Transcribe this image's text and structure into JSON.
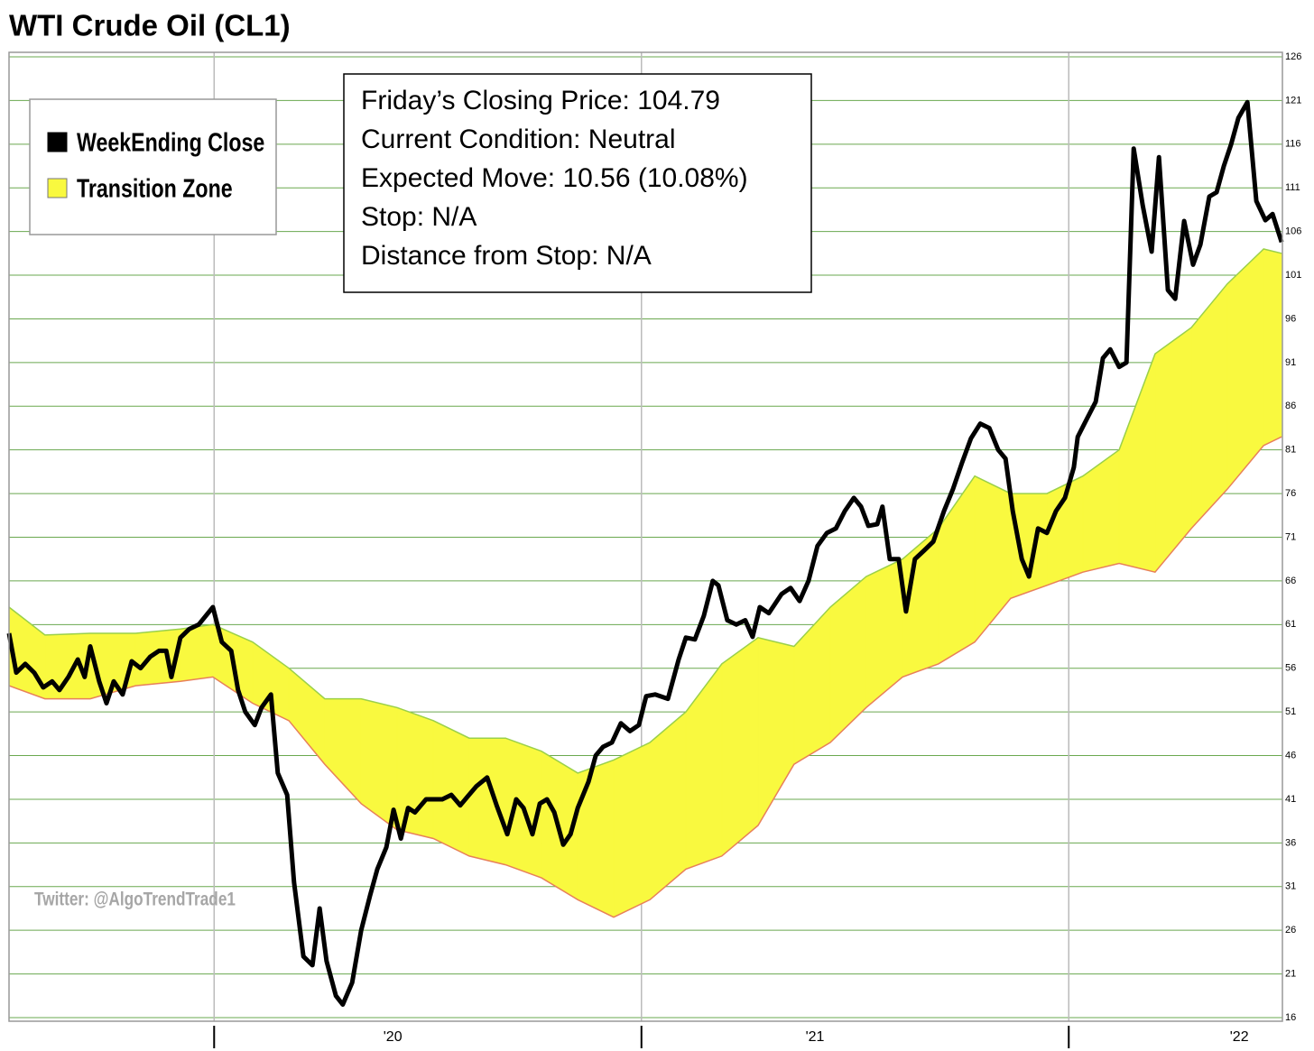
{
  "chart_data": {
    "type": "line",
    "title": "WTI Crude Oil (CL1)",
    "info": [
      "Friday’s Closing Price: 104.79",
      "Current Condition: Neutral",
      "Expected Move: 10.56 (10.08%)",
      "Stop: N/A",
      "Distance from Stop: N/A"
    ],
    "watermark": "Twitter: @AlgoTrendTrade1",
    "xlim": [
      2019.52,
      2022.5
    ],
    "xticks": [
      {
        "value": 2020.418,
        "label": "'20"
      },
      {
        "value": 2021.406,
        "label": "'21"
      },
      {
        "value": 2022.399,
        "label": "'22"
      }
    ],
    "xgrid": [
      2020,
      2021,
      2022
    ],
    "ylim": [
      16,
      126
    ],
    "yticks": [
      126,
      121,
      116,
      111,
      106,
      101,
      96,
      91,
      86,
      81,
      76,
      71,
      66,
      61,
      56,
      51,
      46,
      41,
      36,
      31,
      26,
      21,
      16
    ],
    "grid": true,
    "grid_color": "#6aa84f",
    "series": [
      {
        "name": "WeekEnding Close",
        "color": "#000000",
        "x": [
          2019.52,
          2019.537,
          2019.558,
          2019.579,
          2019.6,
          2019.621,
          2019.638,
          2019.659,
          2019.681,
          2019.697,
          2019.71,
          2019.731,
          2019.748,
          2019.765,
          2019.786,
          2019.807,
          2019.828,
          2019.85,
          2019.871,
          2019.888,
          2019.9,
          2019.921,
          2019.942,
          2019.964,
          2019.997,
          2020.018,
          2020.04,
          2020.056,
          2020.073,
          2020.095,
          2020.111,
          2020.133,
          2020.149,
          2020.171,
          2020.187,
          2020.209,
          2020.23,
          2020.247,
          2020.263,
          2020.285,
          2020.301,
          2020.323,
          2020.344,
          2020.365,
          2020.382,
          2020.403,
          2020.42,
          2020.437,
          2020.454,
          2020.47,
          2020.496,
          2020.517,
          2020.534,
          2020.555,
          2020.576,
          2020.593,
          2020.614,
          2020.639,
          2020.661,
          2020.686,
          2020.707,
          2020.724,
          2020.745,
          2020.762,
          2020.779,
          2020.796,
          2020.817,
          2020.834,
          2020.851,
          2020.876,
          2020.893,
          2020.91,
          2020.931,
          2020.952,
          2020.973,
          2020.994,
          2021.011,
          2021.032,
          2021.062,
          2021.087,
          2021.104,
          2021.125,
          2021.146,
          2021.167,
          2021.18,
          2021.201,
          2021.222,
          2021.243,
          2021.26,
          2021.277,
          2021.298,
          2021.328,
          2021.349,
          2021.37,
          2021.391,
          2021.412,
          2021.434,
          2021.455,
          2021.476,
          2021.497,
          2021.514,
          2021.531,
          2021.552,
          2021.564,
          2021.581,
          2021.602,
          2021.619,
          2021.64,
          2021.662,
          2021.683,
          2021.708,
          2021.729,
          2021.75,
          2021.771,
          2021.793,
          2021.814,
          2021.835,
          2021.852,
          2021.869,
          2021.89,
          2021.907,
          2021.928,
          2021.949,
          2021.97,
          2021.991,
          2022.012,
          2022.021,
          2022.042,
          2022.063,
          2022.08,
          2022.097,
          2022.118,
          2022.135,
          2022.152,
          2022.173,
          2022.194,
          2022.211,
          2022.232,
          2022.249,
          2022.27,
          2022.291,
          2022.308,
          2022.329,
          2022.346,
          2022.363,
          2022.38,
          2022.397,
          2022.418,
          2022.439,
          2022.46,
          2022.477,
          2022.498
        ],
        "values": [
          60,
          55.5,
          56.5,
          55.5,
          53.8,
          54.5,
          53.5,
          55,
          57,
          55,
          58.5,
          54.5,
          52,
          54.5,
          53,
          56.8,
          56,
          57.3,
          58,
          58,
          55,
          59.5,
          60.5,
          61,
          63,
          59,
          58,
          53.5,
          51,
          49.5,
          51.5,
          53,
          44,
          41.5,
          31.5,
          23,
          22,
          28.5,
          22.5,
          18.5,
          17.5,
          20,
          26,
          30,
          33,
          35.5,
          39.8,
          36.5,
          40,
          39.5,
          41,
          41,
          41,
          41.5,
          40.3,
          41.3,
          42.5,
          43.5,
          40.3,
          37,
          41,
          40,
          37,
          40.5,
          41,
          39.5,
          35.8,
          37,
          40,
          43,
          46,
          47,
          47.5,
          49.7,
          48.8,
          49.5,
          52.8,
          53,
          52.5,
          57,
          59.5,
          59.3,
          62,
          66,
          65.5,
          61.5,
          61,
          61.5,
          59.6,
          63,
          62.3,
          64.5,
          65.2,
          63.7,
          66,
          70,
          71.5,
          72,
          74,
          75.5,
          74.5,
          72.3,
          72.5,
          74.5,
          68.5,
          68.5,
          62.5,
          68.5,
          69.5,
          70.5,
          74,
          76.5,
          79.5,
          82.3,
          84,
          83.5,
          81,
          80,
          74,
          68.5,
          66.5,
          72,
          71.5,
          74,
          75.5,
          79,
          82.5,
          84.5,
          86.5,
          91.5,
          92.5,
          90.5,
          91,
          115.5,
          109,
          103.7,
          114.5,
          99.3,
          98.3,
          107.2,
          102.2,
          104.5,
          110,
          110.5,
          113.5,
          116,
          119,
          120.8,
          109.5,
          107.3,
          108,
          104.79
        ]
      },
      {
        "name": "Transition Zone",
        "color": "#f9f93f",
        "upper_color": "#9ad04a",
        "lower_color": "#e8805a",
        "x": [
          2019.52,
          2019.604,
          2019.71,
          2019.816,
          2019.921,
          2019.997,
          2020.09,
          2020.175,
          2020.259,
          2020.344,
          2020.428,
          2020.513,
          2020.597,
          2020.682,
          2020.766,
          2020.851,
          2020.935,
          2021.02,
          2021.104,
          2021.188,
          2021.273,
          2021.357,
          2021.442,
          2021.526,
          2021.611,
          2021.695,
          2021.78,
          2021.864,
          2021.949,
          2022.033,
          2022.118,
          2022.202,
          2022.287,
          2022.371,
          2022.456,
          2022.498
        ],
        "upper": [
          63,
          59.8,
          60,
          60,
          60.5,
          61,
          59,
          56,
          52.5,
          52.5,
          51.5,
          50,
          48,
          48,
          46.5,
          44,
          45.5,
          47.5,
          51,
          56.5,
          59.5,
          58.5,
          63,
          66.5,
          68.5,
          72,
          78,
          76,
          76,
          78,
          81,
          92,
          95,
          100,
          104,
          103.5
        ],
        "lower": [
          54,
          52.5,
          52.5,
          54,
          54.5,
          55,
          52,
          50,
          45,
          40.5,
          37.5,
          36.5,
          34.5,
          33.5,
          32,
          29.5,
          27.5,
          29.5,
          33,
          34.5,
          38,
          45,
          47.5,
          51.5,
          55,
          56.5,
          59,
          64,
          65.5,
          67,
          68,
          67,
          72,
          76.5,
          81.5,
          82.5
        ]
      }
    ]
  }
}
